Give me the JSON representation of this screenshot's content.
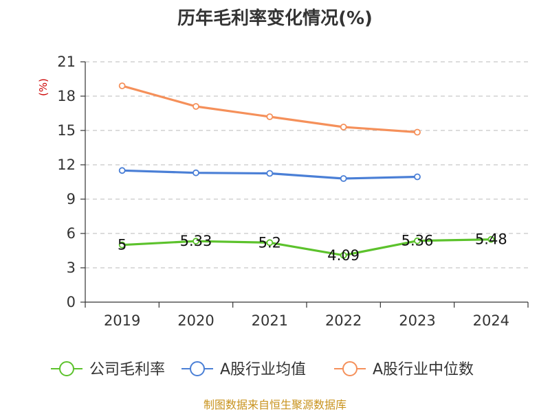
{
  "chart_data": {
    "type": "line",
    "title": "历年毛利率变化情况(%)",
    "ylabel": "(%)",
    "categories": [
      "2019",
      "2020",
      "2021",
      "2022",
      "2023",
      "2024"
    ],
    "yticks": [
      0,
      3,
      6,
      9,
      12,
      15,
      18,
      21
    ],
    "ylim": [
      0,
      21
    ],
    "grid": true,
    "legend_position": "bottom",
    "series": [
      {
        "name": "公司毛利率",
        "color": "#5cc22c",
        "values": [
          5,
          5.33,
          5.2,
          4.09,
          5.36,
          5.48
        ],
        "labels": [
          "5",
          "5.33",
          "5.2",
          "4.09",
          "5.36",
          "5.48"
        ]
      },
      {
        "name": "A股行业均值",
        "color": "#4a7fd6",
        "values": [
          11.5,
          11.3,
          11.25,
          10.8,
          10.95,
          null
        ]
      },
      {
        "name": "A股行业中位数",
        "color": "#f5905a",
        "values": [
          18.9,
          17.1,
          16.2,
          15.3,
          14.85,
          null
        ]
      }
    ]
  },
  "source": "制图数据来自恒生聚源数据库"
}
